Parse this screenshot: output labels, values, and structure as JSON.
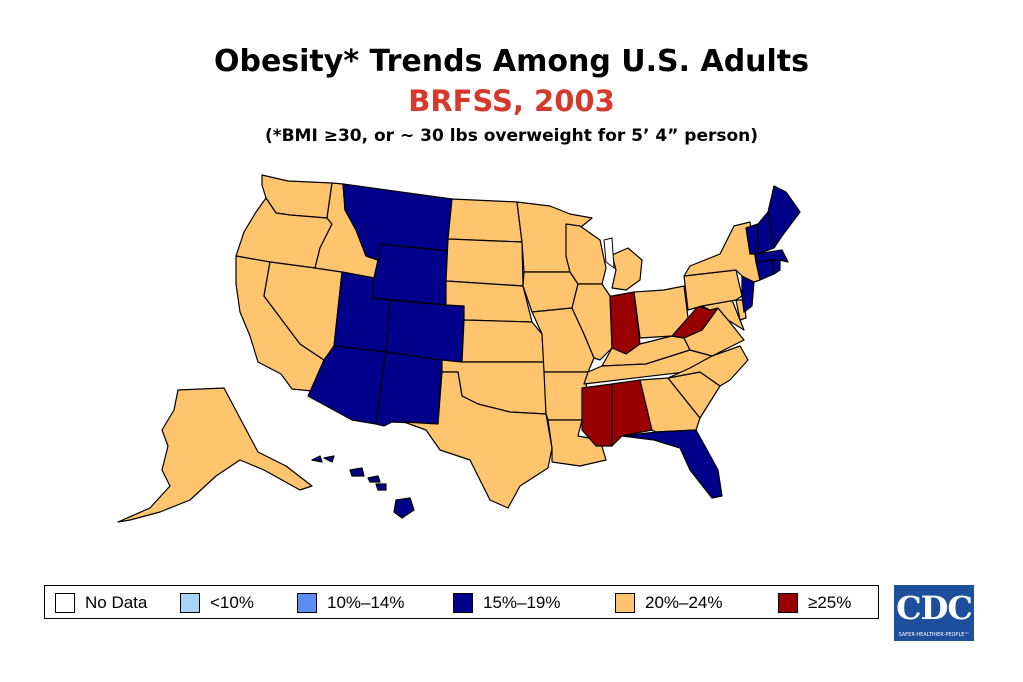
{
  "title": "Obesity* Trends Among U.S. Adults",
  "subtitle": "BRFSS, 2003",
  "note": "(*BMI ≥30, or ~ 30 lbs overweight for 5’ 4” person)",
  "legend": [
    {
      "label": "No Data",
      "color": "#ffffff"
    },
    {
      "label": "<10%",
      "color": "#a8d4f7"
    },
    {
      "label": "10%–14%",
      "color": "#5a8ef0"
    },
    {
      "label": "15%–19%",
      "color": "#00008b"
    },
    {
      "label": "20%–24%",
      "color": "#ffc56e"
    },
    {
      "label": "≥25%",
      "color": "#990000"
    }
  ],
  "map_data": {
    "WA": "20%–24%",
    "OR": "20%–24%",
    "CA": "20%–24%",
    "NV": "20%–24%",
    "ID": "20%–24%",
    "MT": "15%–19%",
    "WY": "15%–19%",
    "UT": "15%–19%",
    "CO": "15%–19%",
    "AZ": "15%–19%",
    "NM": "15%–19%",
    "ND": "20%–24%",
    "SD": "20%–24%",
    "NE": "20%–24%",
    "KS": "20%–24%",
    "OK": "20%–24%",
    "TX": "20%–24%",
    "MN": "20%–24%",
    "IA": "20%–24%",
    "MO": "20%–24%",
    "AR": "20%–24%",
    "LA": "20%–24%",
    "WI": "20%–24%",
    "IL": "20%–24%",
    "MI": "20%–24%",
    "IN": "≥25%",
    "OH": "20%–24%",
    "KY": "20%–24%",
    "TN": "20%–24%",
    "MS": "≥25%",
    "AL": "≥25%",
    "GA": "20%–24%",
    "FL": "15%–19%",
    "SC": "20%–24%",
    "NC": "20%–24%",
    "VA": "20%–24%",
    "WV": "≥25%",
    "MD": "20%–24%",
    "DE": "20%–24%",
    "PA": "20%–24%",
    "NJ": "15%–19%",
    "NY": "20%–24%",
    "CT": "15%–19%",
    "RI": "15%–19%",
    "MA": "15%–19%",
    "VT": "15%–19%",
    "NH": "15%–19%",
    "ME": "15%–19%",
    "AK": "20%–24%",
    "HI": "15%–19%"
  },
  "logo": {
    "text": "CDC",
    "tagline": "SAFER·HEALTHIER·PEOPLE™"
  }
}
